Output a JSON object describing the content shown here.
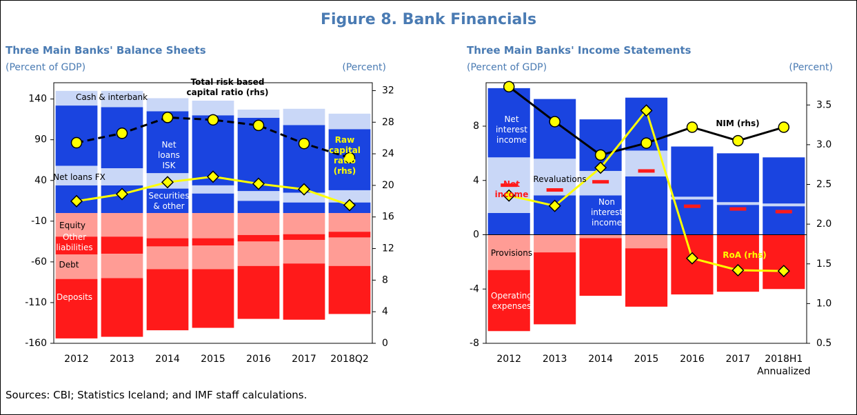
{
  "title": "Figure 8. Bank Financials",
  "source": "Sources: CBI; Statistics Iceland; and IMF staff calculations.",
  "chart_data": [
    {
      "type": "bar",
      "title": "Three Main Banks' Balance Sheets",
      "ylabel": "(Percent of GDP)",
      "y2label": "(Percent)",
      "categories": [
        "2012",
        "2013",
        "2014",
        "2015",
        "2016",
        "2017",
        "2018Q2"
      ],
      "ylim": [
        -160,
        160
      ],
      "yticks": [
        140,
        90,
        40,
        -10,
        -60,
        -110,
        -160
      ],
      "y2lim": [
        0,
        33
      ],
      "y2ticks": [
        0,
        4,
        8,
        12,
        16,
        20,
        24,
        28,
        32
      ],
      "series": [
        {
          "name": "Securities & other",
          "type": "bar",
          "color": "#1a44e0",
          "values": [
            34,
            34,
            30,
            24,
            15,
            13,
            13
          ]
        },
        {
          "name": "Net loans FX",
          "type": "bar",
          "color": "#c9d7f7",
          "values": [
            24,
            21,
            19,
            10,
            12,
            12,
            15
          ]
        },
        {
          "name": "Net loans ISK",
          "type": "bar",
          "color": "#1a44e0",
          "values": [
            74,
            75,
            76,
            86,
            90,
            83,
            75
          ]
        },
        {
          "name": "Cash & interbank",
          "type": "bar",
          "color": "#c9d7f7",
          "values": [
            18,
            20,
            16,
            18,
            10,
            20,
            19
          ]
        },
        {
          "name": "Equity",
          "type": "bar",
          "color": "#ff9c95",
          "values": [
            -29,
            -29,
            -31,
            -31,
            -27,
            -26,
            -23
          ]
        },
        {
          "name": "Other liabilities",
          "type": "bar",
          "color": "#ff1a1a",
          "values": [
            -22,
            -21,
            -10,
            -9,
            -8,
            -7,
            -7
          ]
        },
        {
          "name": "Debt",
          "type": "bar",
          "color": "#ff9c95",
          "values": [
            -30,
            -30,
            -28,
            -29,
            -30,
            -29,
            -35
          ]
        },
        {
          "name": "Deposits",
          "type": "bar",
          "color": "#ff1a1a",
          "values": [
            -73,
            -72,
            -75,
            -72,
            -65,
            -69,
            -59
          ]
        },
        {
          "name": "Total risk based capital ratio (rhs)",
          "type": "line",
          "axis": "y2",
          "color": "#000000",
          "dashed": true,
          "marker": "circle",
          "values": [
            25.4,
            26.6,
            28.6,
            28.3,
            27.6,
            25.3,
            23.5
          ]
        },
        {
          "name": "Raw capital ratio (rhs)",
          "type": "line",
          "axis": "y2",
          "color": "#ffff00",
          "dashed": false,
          "marker": "diamond",
          "values": [
            18.0,
            18.9,
            20.4,
            21.1,
            20.2,
            19.5,
            17.5
          ]
        }
      ]
    },
    {
      "type": "bar",
      "title": "Three Main Banks' Income Statements",
      "ylabel": "(Percent of GDP)",
      "y2label": "(Percent)",
      "categories": [
        "2012",
        "2013",
        "2014",
        "2015",
        "2016",
        "2017",
        "2018H1 Annualized"
      ],
      "ylim": [
        -8,
        11.2
      ],
      "yticks": [
        8,
        4,
        0,
        -4,
        -8
      ],
      "y2lim": [
        0.5,
        3.78
      ],
      "y2ticks": [
        3.5,
        {
          "value": 3,
          "label": "3.0"
        },
        2.5,
        {
          "value": 2,
          "label": "2.0"
        },
        1.5,
        {
          "value": 1,
          "label": "1.0"
        },
        0.5
      ],
      "zero_line": true,
      "series": [
        {
          "name": "Non interest income",
          "type": "bar",
          "color": "#1a44e0",
          "values": [
            1.6,
            2.9,
            2.9,
            4.3,
            2.6,
            2.2,
            2.1
          ]
        },
        {
          "name": "Revaluations",
          "type": "bar",
          "color": "#c9d7f7",
          "values": [
            4.1,
            2.7,
            1.8,
            1.9,
            0.2,
            0.2,
            0.2
          ]
        },
        {
          "name": "Net interest income",
          "type": "bar",
          "color": "#1a44e0",
          "values": [
            5.1,
            4.4,
            3.8,
            3.9,
            3.7,
            3.6,
            3.4
          ]
        },
        {
          "name": "Provisions",
          "type": "bar",
          "color": "#ff9c95",
          "values": [
            -2.6,
            -1.3,
            -0.25,
            -1.0,
            0,
            0,
            0
          ]
        },
        {
          "name": "Operating expenses",
          "type": "bar",
          "color": "#ff1a1a",
          "values": [
            -4.5,
            -5.3,
            -4.25,
            -4.3,
            -4.4,
            -4.2,
            -4.0
          ]
        },
        {
          "name": "Net income",
          "type": "marker",
          "color": "#ff1a1a",
          "values": [
            3.65,
            3.3,
            3.9,
            4.7,
            2.1,
            1.9,
            1.7
          ]
        },
        {
          "name": "NIM (rhs)",
          "type": "line",
          "axis": "y2",
          "color": "#000000",
          "dashed": false,
          "marker": "circle",
          "values": [
            3.73,
            3.29,
            2.87,
            3.02,
            3.22,
            3.05,
            3.22
          ]
        },
        {
          "name": "RoA (rhs)",
          "type": "line",
          "axis": "y2",
          "color": "#ffff00",
          "dashed": false,
          "marker": "diamond",
          "values": [
            2.36,
            2.23,
            2.71,
            3.43,
            1.57,
            1.42,
            1.41
          ]
        }
      ]
    }
  ]
}
